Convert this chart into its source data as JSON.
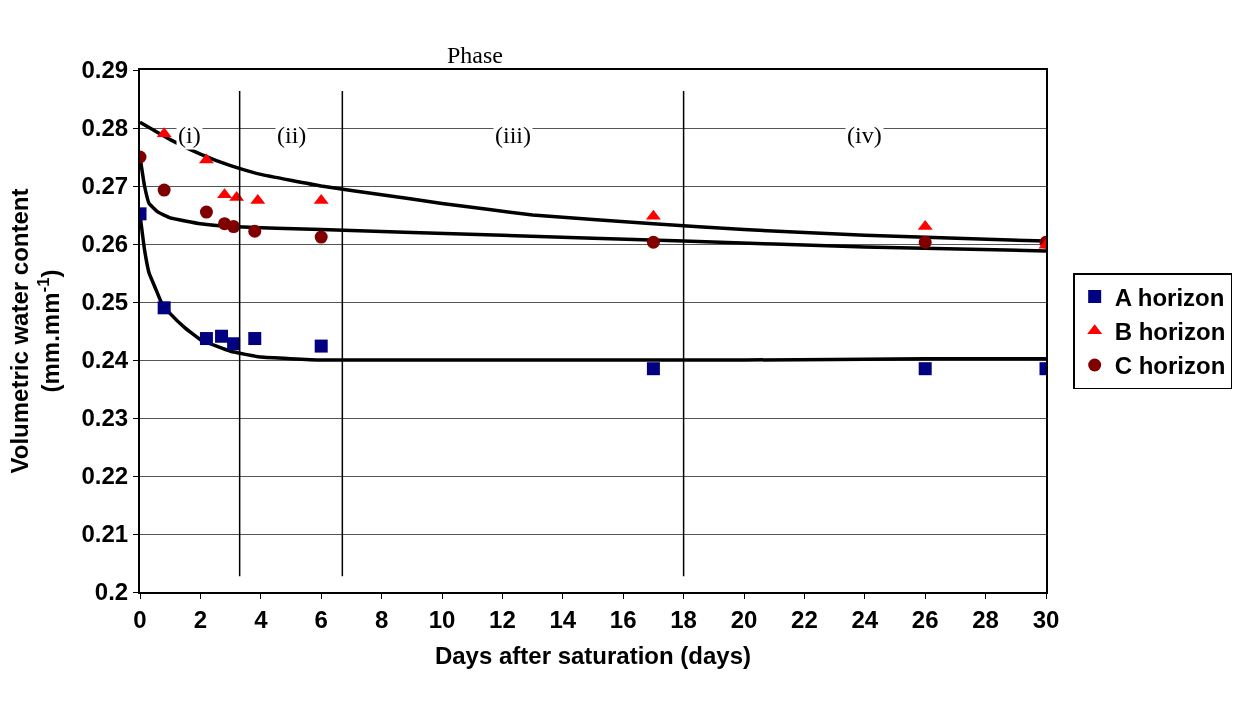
{
  "chart_data": {
    "type": "scatter",
    "xlabel": "Days after saturation (days)",
    "ylabel": "Volumetric water content\n(mm.mm$^{-1}$)",
    "xlim": [
      0,
      30
    ],
    "xticks": [
      0,
      2,
      4,
      6,
      8,
      10,
      12,
      14,
      16,
      18,
      20,
      22,
      24,
      26,
      28,
      30
    ],
    "ylim": [
      0.2,
      0.29
    ],
    "yticks": [
      0.2,
      0.21,
      0.22,
      0.23,
      0.24,
      0.25,
      0.26,
      0.27,
      0.28,
      0.29
    ],
    "grid": "y",
    "legend": "right",
    "series": [
      {
        "name": "A horizon",
        "color": "#000080",
        "marker": "square",
        "x": [
          0,
          0.8,
          2.2,
          2.7,
          3.1,
          3.8,
          6,
          17,
          26,
          30
        ],
        "values": [
          0.2652,
          0.249,
          0.2437,
          0.2441,
          0.2428,
          0.2437,
          0.2424,
          0.2385,
          0.2385,
          0.2385
        ]
      },
      {
        "name": "B horizon",
        "color": "#ff0000",
        "marker": "triangle",
        "x": [
          0.8,
          2.2,
          2.8,
          3.2,
          3.9,
          6,
          17,
          26,
          30
        ],
        "values": [
          0.279,
          0.2745,
          0.2685,
          0.268,
          0.2675,
          0.2675,
          0.2648,
          0.263,
          0.2598
        ]
      },
      {
        "name": "C horizon",
        "color": "#800000",
        "marker": "circle",
        "x": [
          0,
          0.8,
          2.2,
          2.8,
          3.1,
          3.8,
          6,
          17,
          26,
          30
        ],
        "values": [
          0.275,
          0.2693,
          0.2655,
          0.2635,
          0.263,
          0.2622,
          0.2612,
          0.2603,
          0.2603,
          0.2603
        ]
      },
      {
        "type": "line",
        "color": "#000000",
        "marker": "none",
        "x": [
          0,
          0.15,
          0.3,
          0.5,
          0.7,
          1,
          1.5,
          2,
          3,
          4,
          6,
          10,
          20,
          26,
          30
        ],
        "values": [
          0.265,
          0.259,
          0.255,
          0.2525,
          0.25,
          0.248,
          0.2455,
          0.2435,
          0.2415,
          0.2405,
          0.24,
          0.24,
          0.24,
          0.2402,
          0.2402
        ]
      },
      {
        "type": "line",
        "color": "#000000",
        "marker": "none",
        "x": [
          0,
          1,
          2,
          3,
          4,
          6,
          8,
          10,
          13,
          17,
          20,
          24,
          30
        ],
        "values": [
          0.281,
          0.278,
          0.2755,
          0.2735,
          0.272,
          0.27,
          0.2685,
          0.267,
          0.265,
          0.2635,
          0.2625,
          0.2615,
          0.2605
        ]
      },
      {
        "type": "line",
        "color": "#000000",
        "marker": "none",
        "x": [
          0,
          0.15,
          0.3,
          0.6,
          1,
          2,
          3,
          6,
          12,
          18,
          24,
          30
        ],
        "values": [
          0.275,
          0.27,
          0.267,
          0.2655,
          0.2645,
          0.2635,
          0.263,
          0.2625,
          0.2615,
          0.2605,
          0.2595,
          0.2588
        ]
      }
    ],
    "ref_lines": [
      {
        "axis": "x",
        "value": 3.3,
        "color": "#000000"
      },
      {
        "axis": "x",
        "value": 6.7,
        "color": "#000000"
      },
      {
        "axis": "x",
        "value": 18,
        "color": "#000000"
      }
    ],
    "annotations": [
      "Phase",
      "(i)",
      "(ii)",
      "(iii)",
      "(iv)"
    ]
  }
}
